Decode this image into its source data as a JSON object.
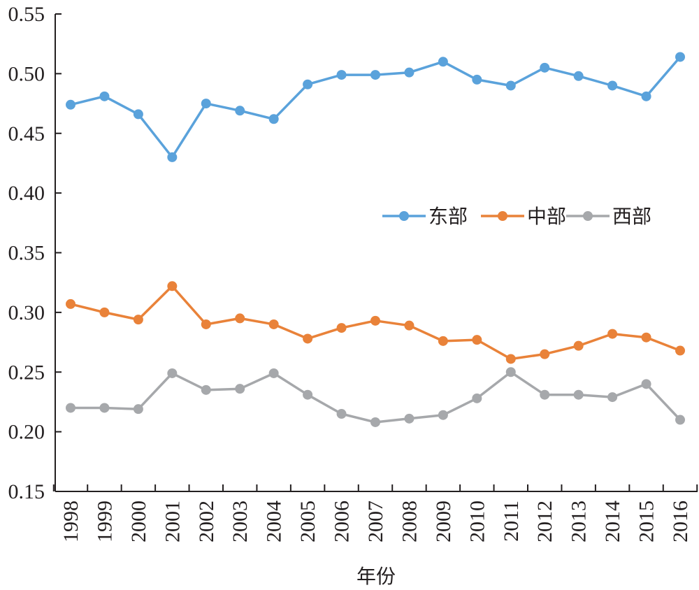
{
  "chart_data": {
    "type": "line",
    "xlabel": "年份",
    "ylabel": "",
    "ylim": [
      0.15,
      0.55
    ],
    "yticks": [
      "0.15",
      "0.20",
      "0.25",
      "0.30",
      "0.35",
      "0.40",
      "0.45",
      "0.50",
      "0.55"
    ],
    "categories": [
      "1998",
      "1999",
      "2000",
      "2001",
      "2002",
      "2003",
      "2004",
      "2005",
      "2006",
      "2007",
      "2008",
      "2009",
      "2010",
      "2011",
      "2012",
      "2013",
      "2014",
      "2015",
      "2016"
    ],
    "grid": false,
    "legend": {
      "placement": "center-right"
    },
    "series": [
      {
        "name": "东部",
        "color": "#5aa2db",
        "values": [
          0.474,
          0.481,
          0.466,
          0.43,
          0.475,
          0.469,
          0.462,
          0.491,
          0.499,
          0.499,
          0.501,
          0.51,
          0.495,
          0.49,
          0.505,
          0.498,
          0.49,
          0.481,
          0.514
        ]
      },
      {
        "name": "中部",
        "color": "#e98239",
        "values": [
          0.307,
          0.3,
          0.294,
          0.322,
          0.29,
          0.295,
          0.29,
          0.278,
          0.287,
          0.293,
          0.289,
          0.276,
          0.277,
          0.261,
          0.265,
          0.272,
          0.282,
          0.279,
          0.268
        ]
      },
      {
        "name": "西部",
        "color": "#a6a8ab",
        "values": [
          0.22,
          0.22,
          0.219,
          0.249,
          0.235,
          0.236,
          0.249,
          0.231,
          0.215,
          0.208,
          0.211,
          0.214,
          0.228,
          0.25,
          0.231,
          0.231,
          0.229,
          0.24,
          0.21
        ]
      }
    ]
  }
}
